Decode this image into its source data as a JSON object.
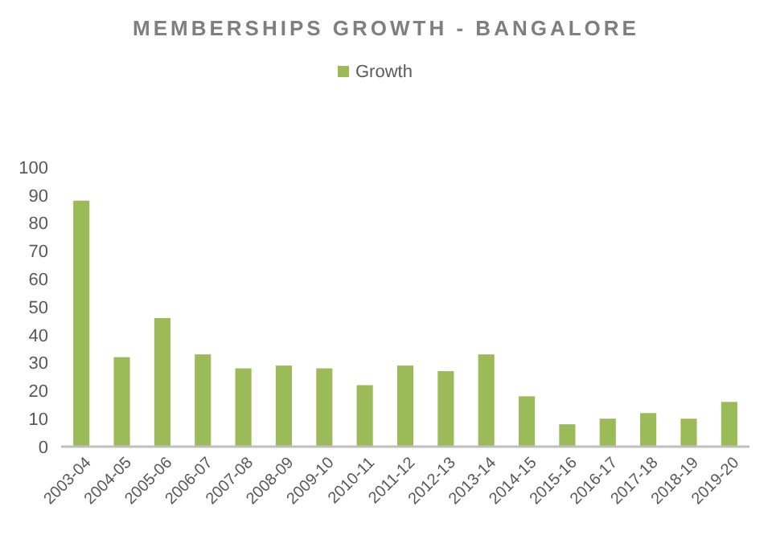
{
  "chart_data": {
    "type": "bar",
    "title": "MEMBERSHIPS GROWTH - BANGALORE",
    "categories": [
      "2003-04",
      "2004-05",
      "2005-06",
      "2006-07",
      "2007-08",
      "2008-09",
      "2009-10",
      "2010-11",
      "2011-12",
      "2012-13",
      "2013-14",
      "2014-15",
      "2015-16",
      "2016-17",
      "2017-18",
      "2018-19",
      "2019-20"
    ],
    "series": [
      {
        "name": "Growth",
        "color": "#9bbb59",
        "values": [
          88,
          32,
          46,
          33,
          28,
          29,
          28,
          22,
          29,
          27,
          33,
          18,
          8,
          10,
          12,
          10,
          16
        ]
      }
    ],
    "ylim": [
      0,
      100
    ],
    "yticks": [
      0,
      10,
      20,
      30,
      40,
      50,
      60,
      70,
      80,
      90,
      100
    ],
    "grid": false,
    "legend": "top"
  }
}
